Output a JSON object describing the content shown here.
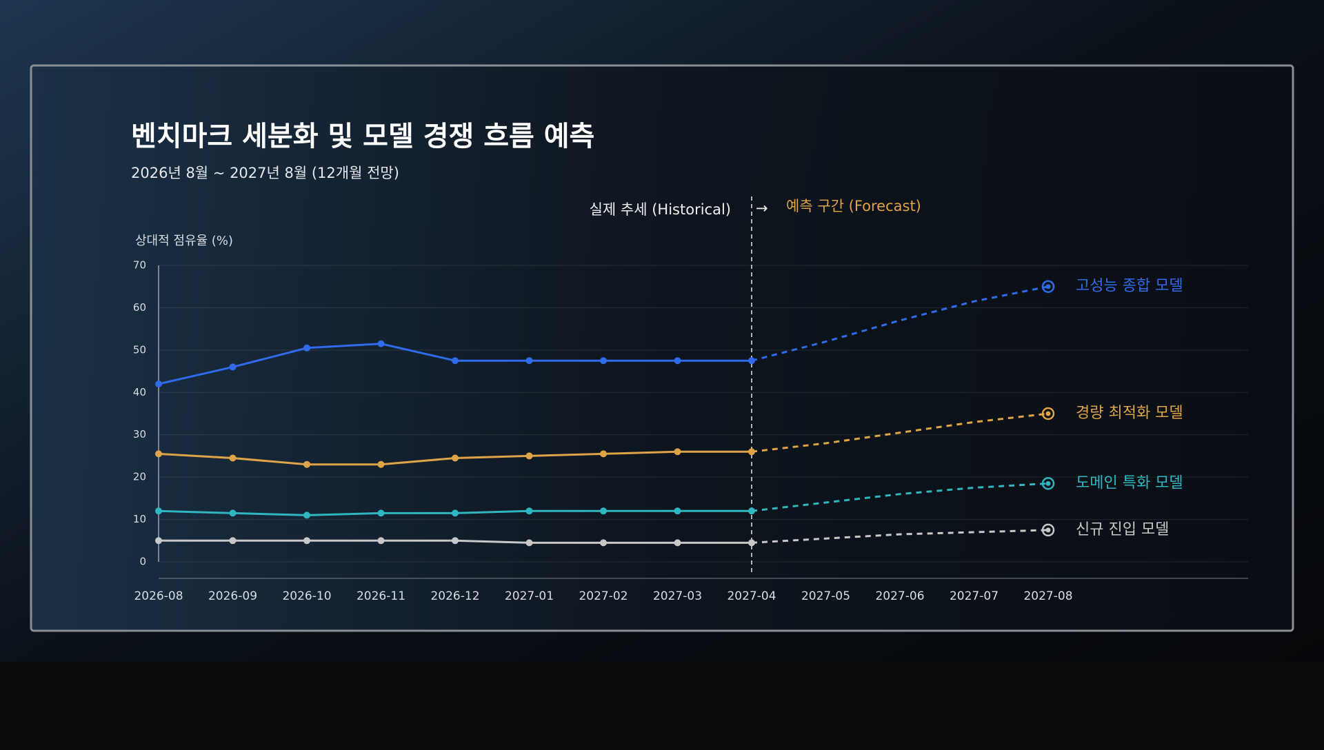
{
  "chart_data": {
    "type": "line",
    "title": "벤치마크 세분화 및 모델 경쟁 흐름 예측",
    "subtitle": "2026년 8월 ~ 2027년 8월 (12개월 전망)",
    "y_label": "상대적 점유율 (%)",
    "annotations": {
      "historical": "실제 추세 (Historical)",
      "arrow": "→",
      "forecast": "예측 구간 (Forecast)"
    },
    "categories": [
      "2026-08",
      "2026-09",
      "2026-10",
      "2026-11",
      "2026-12",
      "2027-01",
      "2027-02",
      "2027-03",
      "2027-04",
      "2027-05",
      "2027-06",
      "2027-07",
      "2027-08"
    ],
    "ylim": [
      0,
      70
    ],
    "yticks": [
      0,
      10,
      20,
      30,
      40,
      50,
      60,
      70
    ],
    "grid": true,
    "series": [
      {
        "name": "고성능 종합 모델",
        "color": "#2f6bea",
        "values": [
          42,
          46,
          50.5,
          51.5,
          47.5,
          47.5,
          47.5,
          47.5,
          47.5,
          null,
          null,
          null,
          null
        ],
        "forecast": [
          null,
          null,
          null,
          null,
          null,
          null,
          null,
          null,
          47.5,
          52,
          57,
          61.5,
          65
        ]
      },
      {
        "name": "경량 최적화 모델",
        "color": "#e0a448",
        "values": [
          25.5,
          24.5,
          23,
          23,
          24.5,
          25,
          25.5,
          26,
          26,
          null,
          null,
          null,
          null
        ],
        "forecast": [
          null,
          null,
          null,
          null,
          null,
          null,
          null,
          null,
          26,
          28,
          30.5,
          33,
          35
        ]
      },
      {
        "name": "도메인 특화 모델",
        "color": "#2fb6c0",
        "values": [
          12,
          11.5,
          11,
          11.5,
          11.5,
          12,
          12,
          12,
          12,
          null,
          null,
          null,
          null
        ],
        "forecast": [
          null,
          null,
          null,
          null,
          null,
          null,
          null,
          null,
          12,
          14,
          16,
          17.5,
          18.5
        ]
      },
      {
        "name": "신규 진입 모델",
        "color": "#c8c8c8",
        "values": [
          5,
          5,
          5,
          5,
          5,
          4.5,
          4.5,
          4.5,
          4.5,
          null,
          null,
          null,
          null
        ],
        "forecast": [
          null,
          null,
          null,
          null,
          null,
          null,
          null,
          null,
          4.5,
          5.5,
          6.5,
          7,
          7.5
        ]
      }
    ]
  }
}
